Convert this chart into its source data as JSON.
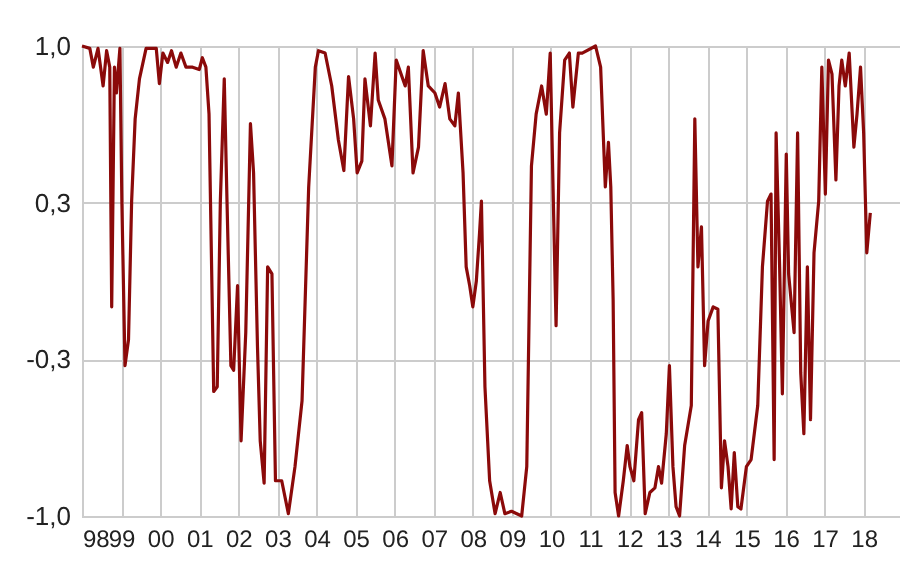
{
  "chart_data": {
    "type": "line",
    "x": [
      1998.0,
      1998.2,
      1998.29,
      1998.41,
      1998.54,
      1998.63,
      1998.71,
      1998.76,
      1998.83,
      1998.88,
      1998.97,
      1999.02,
      1999.1,
      1999.19,
      1999.27,
      1999.36,
      1999.47,
      1999.64,
      1999.9,
      1999.98,
      2000.07,
      2000.19,
      2000.29,
      2000.41,
      2000.53,
      2000.66,
      2000.83,
      2001.0,
      2001.08,
      2001.17,
      2001.25,
      2001.37,
      2001.46,
      2001.54,
      2001.64,
      2001.71,
      2001.81,
      2001.88,
      2001.98,
      2002.07,
      2002.19,
      2002.31,
      2002.39,
      2002.49,
      2002.56,
      2002.66,
      2002.75,
      2002.86,
      2002.95,
      2003.11,
      2003.28,
      2003.45,
      2003.63,
      2003.8,
      2003.97,
      2004.05,
      2004.22,
      2004.39,
      2004.56,
      2004.7,
      2004.82,
      2004.95,
      2005.04,
      2005.16,
      2005.24,
      2005.38,
      2005.5,
      2005.58,
      2005.75,
      2005.93,
      2006.04,
      2006.27,
      2006.35,
      2006.47,
      2006.61,
      2006.73,
      2006.86,
      2007.03,
      2007.15,
      2007.29,
      2007.41,
      2007.54,
      2007.63,
      2007.75,
      2007.83,
      2007.92,
      2008.0,
      2008.09,
      2008.17,
      2008.22,
      2008.31,
      2008.43,
      2008.57,
      2008.7,
      2008.82,
      2008.99,
      2009.25,
      2009.38,
      2009.5,
      2009.62,
      2009.76,
      2009.88,
      2009.98,
      2010.06,
      2010.13,
      2010.22,
      2010.35,
      2010.47,
      2010.56,
      2010.7,
      2010.8,
      2011.14,
      2011.27,
      2011.39,
      2011.47,
      2011.53,
      2011.59,
      2011.64,
      2011.73,
      2011.85,
      2011.95,
      2012.02,
      2012.12,
      2012.24,
      2012.32,
      2012.41,
      2012.53,
      2012.66,
      2012.75,
      2012.83,
      2012.95,
      2013.03,
      2013.12,
      2013.2,
      2013.29,
      2013.42,
      2013.59,
      2013.68,
      2013.76,
      2013.85,
      2013.93,
      2014.02,
      2014.15,
      2014.27,
      2014.36,
      2014.44,
      2014.53,
      2014.61,
      2014.69,
      2014.78,
      2014.86,
      2015.0,
      2015.12,
      2015.29,
      2015.41,
      2015.54,
      2015.63,
      2015.71,
      2015.76,
      2015.85,
      2015.92,
      2016.02,
      2016.08,
      2016.22,
      2016.31,
      2016.39,
      2016.47,
      2016.56,
      2016.64,
      2016.73,
      2016.85,
      2016.93,
      2017.02,
      2017.1,
      2017.19,
      2017.29,
      2017.37,
      2017.44,
      2017.53,
      2017.63,
      2017.75,
      2017.83,
      2017.92,
      2018.0,
      2018.08,
      2018.17
    ],
    "series": [
      {
        "color": "#8b0a0a",
        "values": [
          1.0,
          0.99,
          0.91,
          0.99,
          0.83,
          0.98,
          0.91,
          -0.11,
          0.91,
          0.8,
          0.99,
          0.34,
          -0.36,
          -0.25,
          0.34,
          0.69,
          0.86,
          0.99,
          0.99,
          0.84,
          0.97,
          0.93,
          0.98,
          0.91,
          0.97,
          0.91,
          0.91,
          0.9,
          0.95,
          0.91,
          0.71,
          -0.47,
          -0.45,
          0.34,
          0.86,
          0.34,
          -0.36,
          -0.38,
          -0.02,
          -0.68,
          -0.22,
          0.67,
          0.46,
          -0.28,
          -0.68,
          -0.86,
          0.06,
          0.03,
          -0.85,
          -0.85,
          -0.99,
          -0.79,
          -0.51,
          0.4,
          0.91,
          0.98,
          0.97,
          0.83,
          0.6,
          0.47,
          0.87,
          0.69,
          0.46,
          0.51,
          0.86,
          0.66,
          0.97,
          0.77,
          0.69,
          0.49,
          0.94,
          0.83,
          0.91,
          0.46,
          0.57,
          0.98,
          0.83,
          0.8,
          0.74,
          0.84,
          0.69,
          0.66,
          0.8,
          0.46,
          0.06,
          -0.02,
          -0.11,
          0.0,
          0.2,
          0.34,
          -0.45,
          -0.85,
          -0.99,
          -0.9,
          -0.99,
          -0.98,
          -1.0,
          -0.79,
          0.49,
          0.71,
          0.83,
          0.71,
          0.97,
          0.34,
          -0.19,
          0.63,
          0.94,
          0.97,
          0.74,
          0.97,
          0.97,
          1.0,
          0.91,
          0.4,
          0.59,
          0.4,
          -0.08,
          -0.9,
          -1.0,
          -0.85,
          -0.7,
          -0.79,
          -0.85,
          -0.59,
          -0.56,
          -0.99,
          -0.9,
          -0.88,
          -0.79,
          -0.86,
          -0.65,
          -0.36,
          -0.79,
          -0.96,
          -1.0,
          -0.7,
          -0.53,
          0.69,
          0.06,
          0.23,
          -0.36,
          -0.17,
          -0.11,
          -0.12,
          -0.88,
          -0.68,
          -0.79,
          -0.97,
          -0.73,
          -0.96,
          -0.97,
          -0.79,
          -0.76,
          -0.53,
          0.06,
          0.34,
          0.37,
          -0.76,
          0.63,
          0.06,
          -0.48,
          0.54,
          0.03,
          -0.22,
          0.63,
          -0.39,
          -0.65,
          0.06,
          -0.59,
          0.12,
          0.34,
          0.91,
          0.37,
          0.94,
          0.88,
          0.43,
          0.83,
          0.94,
          0.83,
          0.97,
          0.57,
          0.71,
          0.91,
          0.63,
          0.12,
          0.29
        ]
      }
    ],
    "xlim": [
      1998,
      2018.93
    ],
    "xticks": [
      {
        "value": 1998,
        "label": "98"
      },
      {
        "value": 1999,
        "label": "99"
      },
      {
        "value": 2000,
        "label": "00"
      },
      {
        "value": 2001,
        "label": "01"
      },
      {
        "value": 2002,
        "label": "02"
      },
      {
        "value": 2003,
        "label": "03"
      },
      {
        "value": 2004,
        "label": "04"
      },
      {
        "value": 2005,
        "label": "05"
      },
      {
        "value": 2006,
        "label": "06"
      },
      {
        "value": 2007,
        "label": "07"
      },
      {
        "value": 2008,
        "label": "08"
      },
      {
        "value": 2009,
        "label": "09"
      },
      {
        "value": 2010,
        "label": "10"
      },
      {
        "value": 2011,
        "label": "11"
      },
      {
        "value": 2012,
        "label": "12"
      },
      {
        "value": 2013,
        "label": "13"
      },
      {
        "value": 2014,
        "label": "14"
      },
      {
        "value": 2015,
        "label": "15"
      },
      {
        "value": 2016,
        "label": "16"
      },
      {
        "value": 2017,
        "label": "17"
      },
      {
        "value": 2018,
        "label": "18"
      }
    ],
    "ylim": [
      -1.0,
      1.0
    ],
    "yticks": [
      {
        "value": -1.0,
        "label": "-1,0"
      },
      {
        "value": -0.3333,
        "label": "-0,3"
      },
      {
        "value": 0.3333,
        "label": "0,3"
      },
      {
        "value": 1.0,
        "label": "1,0"
      }
    ],
    "grid": true,
    "marker": "none",
    "line_style": "solid"
  }
}
